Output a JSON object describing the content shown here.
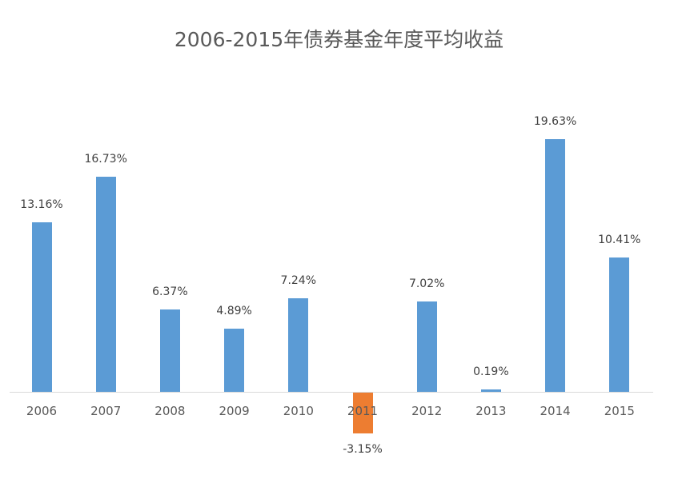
{
  "chart_data": {
    "type": "bar",
    "title": "2006-2015年债券基金年度平均收益",
    "categories": [
      "2006",
      "2007",
      "2008",
      "2009",
      "2010",
      "2011",
      "2012",
      "2013",
      "2014",
      "2015"
    ],
    "values": [
      13.16,
      16.73,
      6.37,
      4.89,
      7.24,
      -3.15,
      7.02,
      0.19,
      19.63,
      10.41
    ],
    "labels": [
      "13.16%",
      "16.73%",
      "6.37%",
      "4.89%",
      "7.24%",
      "-3.15%",
      "7.02%",
      "0.19%",
      "19.63%",
      "10.41%"
    ],
    "xlabel": "",
    "ylabel": "",
    "grid": false,
    "legend": "none",
    "colors": {
      "positive": "#5b9bd5",
      "negative": "#ed7d31"
    }
  }
}
